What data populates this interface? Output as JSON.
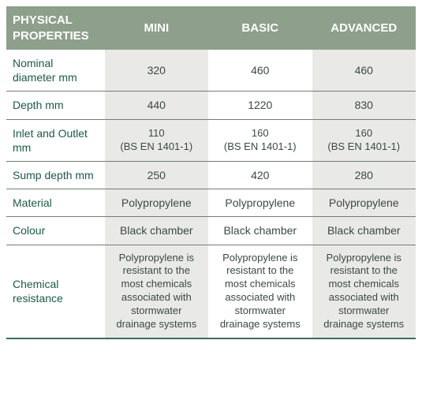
{
  "type": "table",
  "colors": {
    "header_bg": "#8e9f8c",
    "header_text": "#ffffff",
    "label_text": "#1b5a48",
    "value_text": "#3b4a44",
    "shade_bg": "#e9e9e7",
    "row_border": "#6f8070",
    "bottom_border": "#3a6e5b",
    "page_bg": "#ffffff"
  },
  "fonts": {
    "header_size_pt": 11,
    "body_size_pt": 10.5,
    "family": "Segoe UI"
  },
  "layout": {
    "label_col_width_pct": 24,
    "value_col_width_pct": 25.33,
    "shaded_value_columns": [
      0,
      2
    ]
  },
  "headers": [
    "PHYSICAL PROPERTIES",
    "MINI",
    "BASIC",
    "ADVANCED"
  ],
  "rows": [
    {
      "label": "Nominal diameter mm",
      "values": [
        "320",
        "460",
        "460"
      ]
    },
    {
      "label": "Depth mm",
      "values": [
        "440",
        "1220",
        "830"
      ]
    },
    {
      "label": "Inlet and Outlet mm",
      "values": [
        "110\n(BS EN 1401-1)",
        "160\n(BS EN 1401-1)",
        "160\n(BS EN 1401-1)"
      ]
    },
    {
      "label": "Sump depth mm",
      "values": [
        "250",
        "420",
        "280"
      ]
    },
    {
      "label": "Material",
      "values": [
        "Polypropylene",
        "Polypropylene",
        "Polypropylene"
      ]
    },
    {
      "label": "Colour",
      "values": [
        "Black chamber",
        "Black chamber",
        "Black chamber"
      ]
    },
    {
      "label": "Chemical resistance",
      "values": [
        "Polypropylene is resistant to the most chemicals associated with stormwater drainage systems",
        "Polypropylene is resistant to the most chemicals associated with stormwater drainage systems",
        "Polypropylene is resistant to the most chemicals associated with stormwater drainage systems"
      ]
    }
  ]
}
